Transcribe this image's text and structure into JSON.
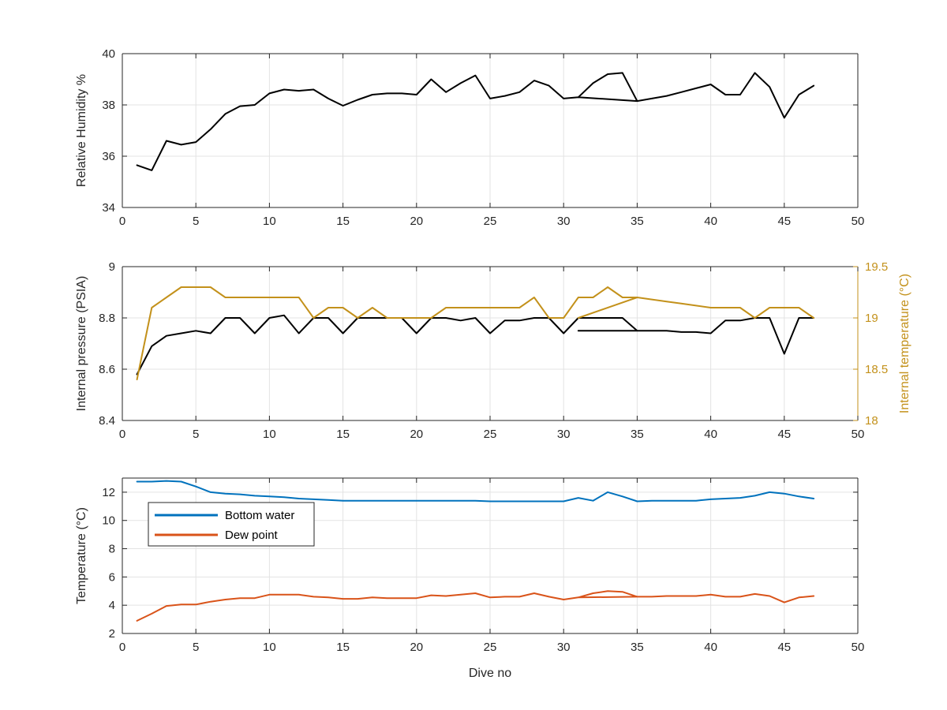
{
  "chart_data": [
    {
      "type": "line",
      "xlabel": "",
      "ylabel": "Relative Humidity %",
      "xlim": [
        0,
        50
      ],
      "ylim": [
        34,
        40
      ],
      "xticks": [
        0,
        5,
        10,
        15,
        20,
        25,
        30,
        35,
        40,
        45,
        50
      ],
      "yticks": [
        34,
        36,
        38,
        40
      ],
      "grid": true,
      "series": [
        {
          "name": "",
          "color": "#000000",
          "x": [
            1,
            2,
            3,
            4,
            5,
            6,
            7,
            8,
            9,
            10,
            11,
            12,
            13,
            14,
            15,
            16,
            17,
            18,
            19,
            20,
            21,
            22,
            23,
            24,
            25,
            26,
            27,
            28,
            29,
            30,
            31,
            35,
            31,
            32,
            33,
            34,
            35,
            36,
            37,
            38,
            39,
            40,
            41,
            42,
            43,
            44,
            45,
            46,
            47
          ],
          "y": [
            35.65,
            35.45,
            36.6,
            36.45,
            36.55,
            37.05,
            37.65,
            37.95,
            38.0,
            38.45,
            38.6,
            38.55,
            38.6,
            38.25,
            37.97,
            38.2,
            38.4,
            38.45,
            38.45,
            38.4,
            39.0,
            38.5,
            38.85,
            39.15,
            38.25,
            38.35,
            38.5,
            38.95,
            38.75,
            38.25,
            38.3,
            38.15,
            38.3,
            38.85,
            39.2,
            39.25,
            38.15,
            38.25,
            38.35,
            38.5,
            38.65,
            38.8,
            38.4,
            38.4,
            39.25,
            38.7,
            37.5,
            38.4,
            38.75
          ]
        }
      ]
    },
    {
      "type": "line",
      "xlabel": "",
      "ylabel": "Internal pressure (PSIA)",
      "y2label": "Internal temperature (°C)",
      "xlim": [
        0,
        50
      ],
      "ylim": [
        8.4,
        9
      ],
      "y2lim": [
        18,
        19.5
      ],
      "xticks": [
        0,
        5,
        10,
        15,
        20,
        25,
        30,
        35,
        40,
        45,
        50
      ],
      "yticks": [
        8.4,
        8.6,
        8.8,
        9
      ],
      "yticklabels": [
        "8.4",
        "8.6",
        "8.8",
        "9"
      ],
      "y2ticks": [
        18,
        18.5,
        19,
        19.5
      ],
      "y2ticklabels": [
        "18",
        "18.5",
        "19",
        "19.5"
      ],
      "axis_color_right": "#c3911b",
      "grid": true,
      "series": [
        {
          "name": "",
          "axis": "left",
          "color": "#000000",
          "x": [
            1,
            2,
            3,
            4,
            5,
            6,
            7,
            8,
            9,
            10,
            11,
            12,
            13,
            14,
            15,
            16,
            17,
            18,
            19,
            20,
            21,
            22,
            23,
            24,
            25,
            26,
            27,
            28,
            29,
            30,
            31,
            34,
            35,
            31,
            34,
            35,
            36,
            37,
            38,
            39,
            40,
            41,
            42,
            43,
            44,
            45,
            46,
            47
          ],
          "y": [
            8.58,
            8.69,
            8.73,
            8.74,
            8.75,
            8.74,
            8.8,
            8.8,
            8.74,
            8.8,
            8.81,
            8.74,
            8.8,
            8.8,
            8.74,
            8.8,
            8.8,
            8.8,
            8.8,
            8.74,
            8.8,
            8.8,
            8.79,
            8.8,
            8.74,
            8.79,
            8.79,
            8.8,
            8.8,
            8.74,
            8.8,
            8.8,
            8.75,
            8.75,
            8.75,
            8.75,
            8.75,
            8.75,
            8.745,
            8.745,
            8.74,
            8.79,
            8.79,
            8.8,
            8.8,
            8.66,
            8.8,
            8.8
          ]
        },
        {
          "name": "",
          "axis": "right",
          "color": "#c3911b",
          "x": [
            1,
            2,
            3,
            4,
            5,
            6,
            7,
            8,
            9,
            10,
            11,
            12,
            13,
            14,
            15,
            16,
            17,
            18,
            19,
            20,
            21,
            22,
            23,
            24,
            25,
            26,
            27,
            28,
            29,
            30,
            31,
            32,
            33,
            34,
            35,
            31,
            35,
            36,
            37,
            38,
            39,
            40,
            41,
            42,
            43,
            44,
            45,
            46,
            47
          ],
          "y": [
            18.4,
            19.1,
            19.2,
            19.3,
            19.3,
            19.3,
            19.2,
            19.2,
            19.2,
            19.2,
            19.2,
            19.2,
            19.0,
            19.1,
            19.1,
            19.0,
            19.1,
            19.0,
            19.0,
            19.0,
            19.0,
            19.1,
            19.1,
            19.1,
            19.1,
            19.1,
            19.1,
            19.2,
            19.0,
            19.0,
            19.2,
            19.2,
            19.3,
            19.2,
            19.2,
            19.0,
            19.2,
            19.18,
            19.16,
            19.14,
            19.12,
            19.1,
            19.1,
            19.1,
            19.0,
            19.1,
            19.1,
            19.1,
            19.0
          ]
        }
      ]
    },
    {
      "type": "line",
      "xlabel": "Dive no",
      "ylabel": "Temperature (°C)",
      "xlim": [
        0,
        50
      ],
      "ylim": [
        2,
        13
      ],
      "xticks": [
        0,
        5,
        10,
        15,
        20,
        25,
        30,
        35,
        40,
        45,
        50
      ],
      "yticks": [
        2,
        4,
        6,
        8,
        10,
        12
      ],
      "grid": true,
      "legend_location": "top-left",
      "series": [
        {
          "name": "Bottom water",
          "color": "#0072bd",
          "x": [
            1,
            2,
            3,
            4,
            5,
            6,
            7,
            8,
            9,
            10,
            11,
            12,
            13,
            14,
            15,
            16,
            17,
            18,
            19,
            20,
            21,
            22,
            23,
            24,
            25,
            26,
            27,
            28,
            29,
            30,
            31,
            32,
            33,
            34,
            35,
            36,
            37,
            38,
            39,
            40,
            41,
            42,
            43,
            44,
            45,
            46,
            47
          ],
          "y": [
            12.75,
            12.75,
            12.8,
            12.75,
            12.4,
            12.0,
            11.9,
            11.85,
            11.75,
            11.7,
            11.65,
            11.55,
            11.5,
            11.45,
            11.4,
            11.4,
            11.4,
            11.4,
            11.4,
            11.4,
            11.4,
            11.4,
            11.4,
            11.4,
            11.35,
            11.35,
            11.35,
            11.35,
            11.35,
            11.35,
            11.6,
            11.4,
            12.0,
            11.7,
            11.35,
            11.4,
            11.4,
            11.4,
            11.4,
            11.5,
            11.55,
            11.6,
            11.75,
            12.0,
            11.9,
            11.7,
            11.55
          ]
        },
        {
          "name": "Dew point",
          "color": "#d95319",
          "x": [
            1,
            2,
            3,
            4,
            5,
            6,
            7,
            8,
            9,
            10,
            11,
            12,
            13,
            14,
            15,
            16,
            17,
            18,
            19,
            20,
            21,
            22,
            23,
            24,
            25,
            26,
            27,
            28,
            29,
            30,
            31,
            32,
            33,
            34,
            35,
            31,
            35,
            36,
            37,
            38,
            39,
            40,
            41,
            42,
            43,
            44,
            45,
            46,
            47
          ],
          "y": [
            2.9,
            3.4,
            3.95,
            4.05,
            4.05,
            4.25,
            4.4,
            4.5,
            4.5,
            4.75,
            4.75,
            4.75,
            4.6,
            4.55,
            4.45,
            4.45,
            4.55,
            4.5,
            4.5,
            4.5,
            4.7,
            4.65,
            4.75,
            4.85,
            4.55,
            4.6,
            4.6,
            4.85,
            4.6,
            4.4,
            4.55,
            4.85,
            5.0,
            4.95,
            4.6,
            4.55,
            4.6,
            4.6,
            4.65,
            4.65,
            4.65,
            4.75,
            4.6,
            4.6,
            4.8,
            4.65,
            4.2,
            4.55,
            4.65
          ]
        }
      ]
    }
  ]
}
